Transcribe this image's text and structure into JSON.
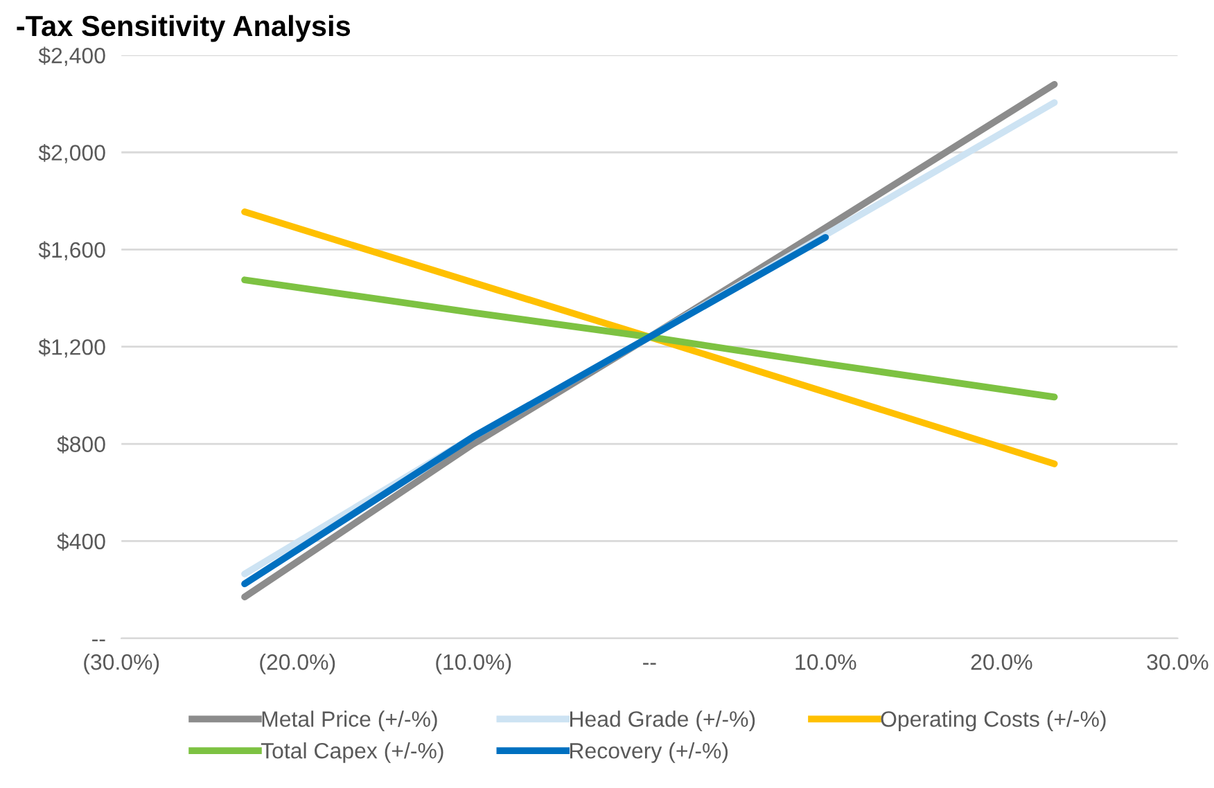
{
  "chart_data": {
    "type": "line",
    "title": "-Tax Sensitivity Analysis",
    "xlim": [
      -30,
      30
    ],
    "xticks": [
      {
        "value": -30,
        "label": "(30.0%)"
      },
      {
        "value": -20,
        "label": "(20.0%)"
      },
      {
        "value": -10,
        "label": "(10.0%)"
      },
      {
        "value": 0,
        "label": "--"
      },
      {
        "value": 10,
        "label": "10.0%"
      },
      {
        "value": 20,
        "label": "20.0%"
      },
      {
        "value": 30,
        "label": "30.0%"
      }
    ],
    "ylim": [
      0,
      2400
    ],
    "yticks": [
      {
        "value": 0,
        "label": "--"
      },
      {
        "value": 400,
        "label": "$400"
      },
      {
        "value": 800,
        "label": "$800"
      },
      {
        "value": 1200,
        "label": "$1,200"
      },
      {
        "value": 1600,
        "label": "$1,600"
      },
      {
        "value": 2000,
        "label": "$2,000"
      },
      {
        "value": 2400,
        "label": "$2,400"
      }
    ],
    "grid": "y",
    "legend": "bottom",
    "marker": "none",
    "line_style": "solid",
    "series": [
      {
        "name": "Metal Price (+/-%)",
        "color": "#8c8c8c",
        "x": [
          -23,
          -10,
          0,
          10,
          23
        ],
        "values": [
          170,
          800,
          1240,
          1690,
          2280
        ]
      },
      {
        "name": "Head Grade (+/-%)",
        "color": "#cde3f3",
        "x": [
          -23,
          -10,
          0,
          10,
          23
        ],
        "values": [
          265,
          830,
          1240,
          1660,
          2205
        ]
      },
      {
        "name": "Operating Costs (+/-%)",
        "color": "#ffc000",
        "x": [
          -23,
          0,
          23
        ],
        "values": [
          1755,
          1240,
          718
        ]
      },
      {
        "name": "Total Capex (+/-%)",
        "color": "#7dc242",
        "x": [
          -23,
          -10,
          0,
          10,
          23
        ],
        "values": [
          1475,
          1340,
          1240,
          1130,
          993
        ]
      },
      {
        "name": "Recovery (+/-%)",
        "color": "#0070c0",
        "x": [
          -23,
          -10,
          0,
          10
        ],
        "values": [
          224,
          830,
          1240,
          1650
        ]
      }
    ]
  }
}
